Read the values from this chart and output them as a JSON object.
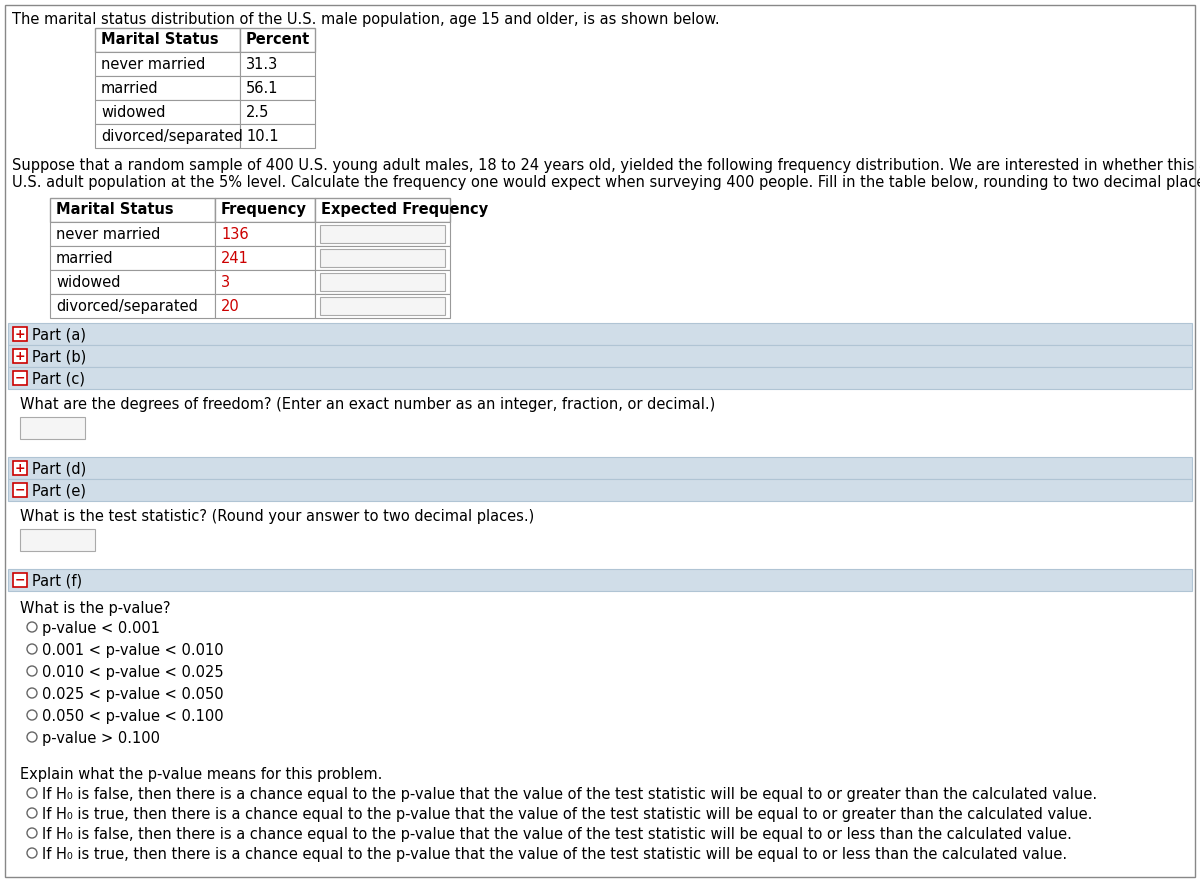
{
  "intro_text": "The marital status distribution of the U.S. male population, age 15 and older, is as shown below.",
  "table1_header": [
    "Marital Status",
    "Percent"
  ],
  "table1_rows": [
    [
      "never married",
      "31.3"
    ],
    [
      "married",
      "56.1"
    ],
    [
      "widowed",
      "2.5"
    ],
    [
      "divorced/separated",
      "10.1"
    ]
  ],
  "para_line1": "Suppose that a random sample of 400 U.S. young adult males, 18 to 24 years old, yielded the following frequency distribution. We are interested in whether this age group of males fits the distribution of the",
  "para_line2": "U.S. adult population at the 5% level. Calculate the frequency one would expect when surveying 400 people. Fill in the table below, rounding to two decimal places.",
  "table2_header": [
    "Marital Status",
    "Frequency",
    "Expected Frequency"
  ],
  "table2_rows": [
    [
      "never married",
      "136",
      ""
    ],
    [
      "married",
      "241",
      ""
    ],
    [
      "widowed",
      "3",
      ""
    ],
    [
      "divorced/separated",
      "20",
      ""
    ]
  ],
  "freq_color": "#cc0000",
  "part_bar_color": "#d0dde8",
  "part_bar_border": "#b0c4d4",
  "part_c_text": "What are the degrees of freedom? (Enter an exact number as an integer, fraction, or decimal.)",
  "part_e_text": "What is the test statistic? (Round your answer to two decimal places.)",
  "part_f_pvalue_label": "What is the p-value?",
  "part_f_options": [
    "p-value < 0.001",
    "0.001 < p-value < 0.010",
    "0.010 < p-value < 0.025",
    "0.025 < p-value < 0.050",
    "0.050 < p-value < 0.100",
    "p-value > 0.100"
  ],
  "part_f_explain_label": "Explain what the p-value means for this problem.",
  "part_f_explain_options": [
    "If H₀ is false, then there is a chance equal to the p-value that the value of the test statistic will be equal to or greater than the calculated value.",
    "If H₀ is true, then there is a chance equal to the p-value that the value of the test statistic will be equal to or greater than the calculated value.",
    "If H₀ is false, then there is a chance equal to the p-value that the value of the test statistic will be equal to or less than the calculated value.",
    "If H₀ is true, then there is a chance equal to the p-value that the value of the test statistic will be equal to or less than the calculated value."
  ],
  "bg_color": "#ffffff",
  "outer_border_color": "#888888",
  "table_border_color": "#999999",
  "radio_color": "#666666",
  "plus_color": "#cc0000",
  "minus_color": "#cc0000",
  "sign_box_color": "#cc0000"
}
